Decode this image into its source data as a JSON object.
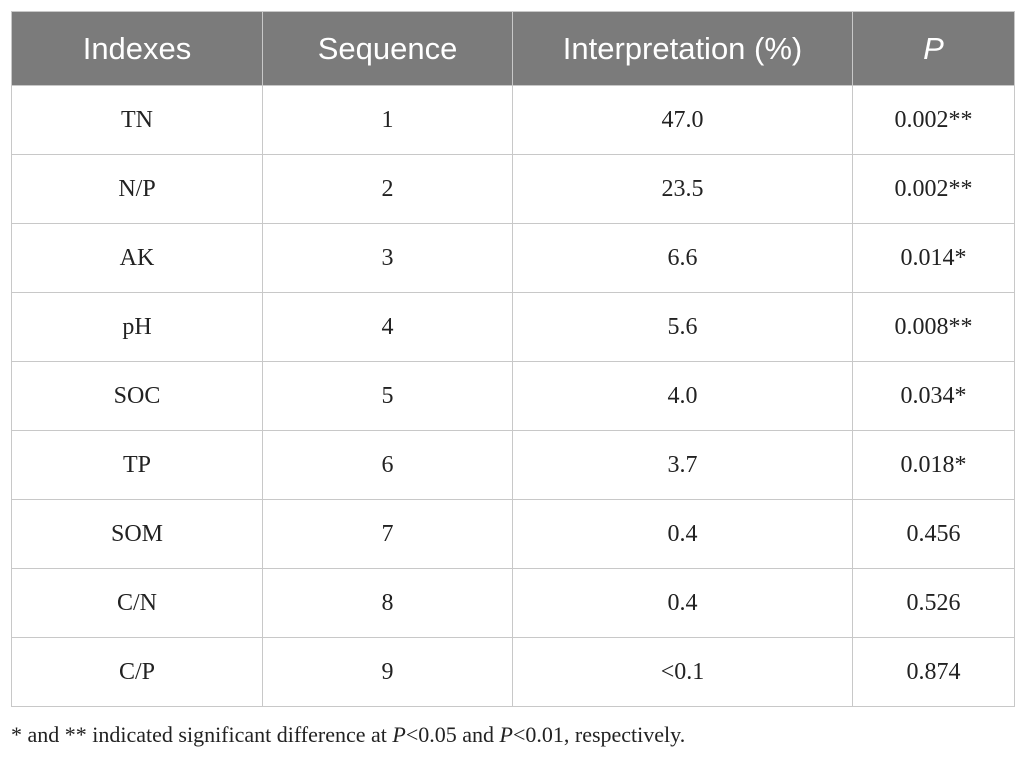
{
  "table": {
    "header": [
      "Indexes",
      "Sequence",
      "Interpretation (%)",
      "P"
    ],
    "rows": [
      [
        "TN",
        1,
        "47.0",
        "0.002**"
      ],
      [
        "N/P",
        2,
        "23.5",
        "0.002**"
      ],
      [
        "AK",
        3,
        "6.6",
        "0.014*"
      ],
      [
        "pH",
        4,
        "5.6",
        "0.008**"
      ],
      [
        "SOC",
        5,
        "4.0",
        "0.034*"
      ],
      [
        "TP",
        6,
        "3.7",
        "0.018*"
      ],
      [
        "SOM",
        7,
        "0.4",
        "0.456"
      ],
      [
        "C/N",
        8,
        "0.4",
        "0.526"
      ],
      [
        "C/P",
        9,
        "<0.1",
        "0.874"
      ]
    ]
  },
  "footnote": [
    "* and ** indicated significant difference at ",
    "P",
    "<0.05 and ",
    "P",
    "<0.01, respectively."
  ]
}
